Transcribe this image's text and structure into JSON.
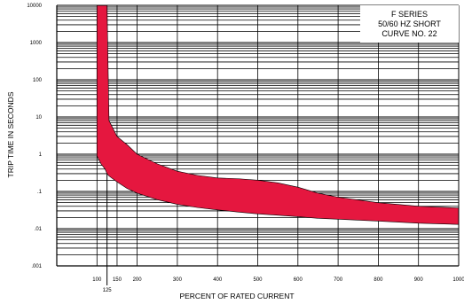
{
  "chart_data": {
    "type": "area",
    "title_lines": [
      "F SERIES",
      "50/60 HZ SHORT",
      "CURVE NO. 22"
    ],
    "xlabel": "PERCENT OF RATED CURRENT",
    "ylabel": "TRIP TIME IN SECONDS",
    "x_ticks": [
      "100",
      "150",
      "200",
      "300",
      "400",
      "500",
      "600",
      "700",
      "800",
      "900",
      "1000"
    ],
    "x_tick_values": [
      100,
      150,
      200,
      300,
      400,
      500,
      600,
      700,
      800,
      900,
      1000
    ],
    "x_extra_tick_label": "125",
    "x_extra_tick_value": 125,
    "y_ticks": [
      "10000",
      "1000",
      "100",
      "10",
      "1",
      ".1",
      ".01",
      ".001"
    ],
    "y_tick_values": [
      10000,
      1000,
      100,
      10,
      1,
      0.1,
      0.01,
      0.001
    ],
    "xlim": [
      0,
      1000
    ],
    "ylim": [
      0.001,
      10000
    ],
    "y_scale": "log",
    "grid": true,
    "band_color": "#e5173f",
    "band": {
      "name": "",
      "x": [
        100,
        110,
        120,
        125,
        130,
        150,
        175,
        200,
        250,
        300,
        350,
        400,
        450,
        500,
        550,
        600,
        650,
        700,
        800,
        900,
        1000
      ],
      "upper": [
        10000,
        10000,
        10000,
        10000,
        8,
        3,
        1.8,
        1,
        0.55,
        0.35,
        0.27,
        0.23,
        0.22,
        0.2,
        0.17,
        0.13,
        0.09,
        0.07,
        0.05,
        0.04,
        0.036
      ],
      "lower": [
        0.9,
        0.55,
        0.4,
        0.3,
        0.26,
        0.18,
        0.12,
        0.09,
        0.06,
        0.045,
        0.037,
        0.032,
        0.028,
        0.025,
        0.023,
        0.021,
        0.019,
        0.018,
        0.016,
        0.014,
        0.013
      ]
    }
  }
}
